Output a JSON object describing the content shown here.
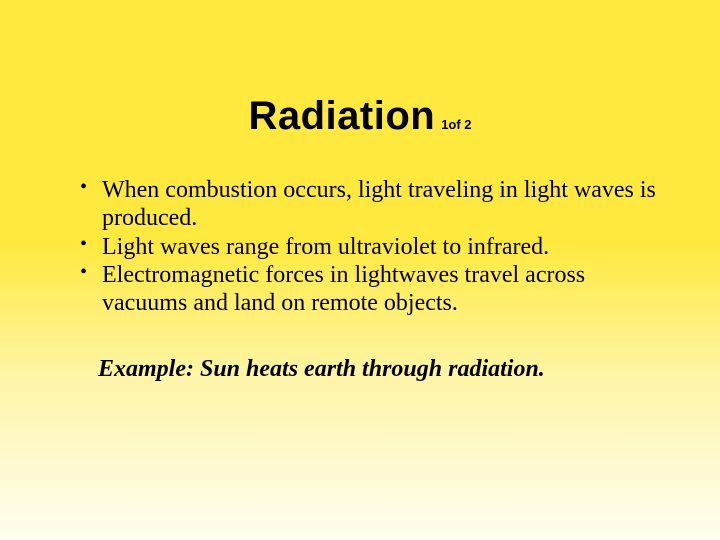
{
  "slide": {
    "background_gradient": {
      "top_color": "#ffe93f",
      "bottom_color": "#fffef2"
    },
    "title": "Radiation",
    "page_indicator": "1of 2",
    "title_fontsize": 40,
    "title_font": "Arial Narrow",
    "title_weight": 900,
    "bullets": [
      "When combustion occurs, light traveling in light waves is produced.",
      "Light waves range from ultraviolet to infrared.",
      "Electromagnetic forces in lightwaves travel across vacuums and land on remote objects."
    ],
    "bullet_fontsize": 24,
    "bullet_font": "Times New Roman",
    "bullet_color": "#000000",
    "example": "Example: Sun heats earth through radiation.",
    "example_fontsize": 24,
    "example_style": "bold italic"
  }
}
